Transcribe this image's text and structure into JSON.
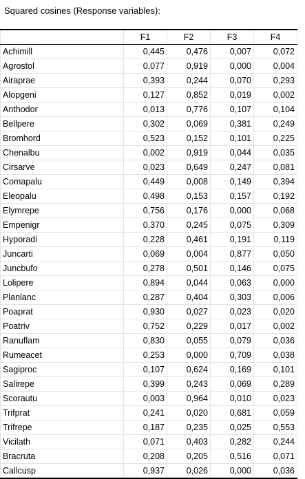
{
  "title": "Squared cosines (Response variables):",
  "columns": [
    "",
    "F1",
    "F2",
    "F3",
    "F4"
  ],
  "rows": [
    [
      "Achimill",
      "0,445",
      "0,476",
      "0,007",
      "0,072"
    ],
    [
      "Agrostol",
      "0,077",
      "0,919",
      "0,000",
      "0,004"
    ],
    [
      "Airaprae",
      "0,393",
      "0,244",
      "0,070",
      "0,293"
    ],
    [
      "Alopgeni",
      "0,127",
      "0,852",
      "0,019",
      "0,002"
    ],
    [
      "Anthodor",
      "0,013",
      "0,776",
      "0,107",
      "0,104"
    ],
    [
      "Bellpere",
      "0,302",
      "0,069",
      "0,381",
      "0,249"
    ],
    [
      "Bromhord",
      "0,523",
      "0,152",
      "0,101",
      "0,225"
    ],
    [
      "Chenalbu",
      "0,002",
      "0,919",
      "0,044",
      "0,035"
    ],
    [
      "Cirsarve",
      "0,023",
      "0,649",
      "0,247",
      "0,081"
    ],
    [
      "Comapalu",
      "0,449",
      "0,008",
      "0,149",
      "0,394"
    ],
    [
      "Eleopalu",
      "0,498",
      "0,153",
      "0,157",
      "0,192"
    ],
    [
      "Elymrepe",
      "0,756",
      "0,176",
      "0,000",
      "0,068"
    ],
    [
      "Empenigr",
      "0,370",
      "0,245",
      "0,075",
      "0,309"
    ],
    [
      "Hyporadi",
      "0,228",
      "0,461",
      "0,191",
      "0,119"
    ],
    [
      "Juncarti",
      "0,069",
      "0,004",
      "0,877",
      "0,050"
    ],
    [
      "Juncbufo",
      "0,278",
      "0,501",
      "0,146",
      "0,075"
    ],
    [
      "Lolipere",
      "0,894",
      "0,044",
      "0,063",
      "0,000"
    ],
    [
      "Planlanc",
      "0,287",
      "0,404",
      "0,303",
      "0,006"
    ],
    [
      "Poaprat",
      "0,930",
      "0,027",
      "0,023",
      "0,020"
    ],
    [
      "Poatriv",
      "0,752",
      "0,229",
      "0,017",
      "0,002"
    ],
    [
      "Ranuflam",
      "0,830",
      "0,055",
      "0,079",
      "0,036"
    ],
    [
      "Rumeacet",
      "0,253",
      "0,000",
      "0,709",
      "0,038"
    ],
    [
      "Sagiproc",
      "0,107",
      "0,624",
      "0,169",
      "0,101"
    ],
    [
      "Salirepe",
      "0,399",
      "0,243",
      "0,069",
      "0,289"
    ],
    [
      "Scorautu",
      "0,003",
      "0,964",
      "0,010",
      "0,023"
    ],
    [
      "Trifprat",
      "0,241",
      "0,020",
      "0,681",
      "0,059"
    ],
    [
      "Trifrepe",
      "0,187",
      "0,235",
      "0,025",
      "0,553"
    ],
    [
      "Vicilath",
      "0,071",
      "0,403",
      "0,282",
      "0,244"
    ],
    [
      "Bracruta",
      "0,208",
      "0,205",
      "0,516",
      "0,071"
    ],
    [
      "Callcusp",
      "0,937",
      "0,026",
      "0,000",
      "0,036"
    ]
  ]
}
